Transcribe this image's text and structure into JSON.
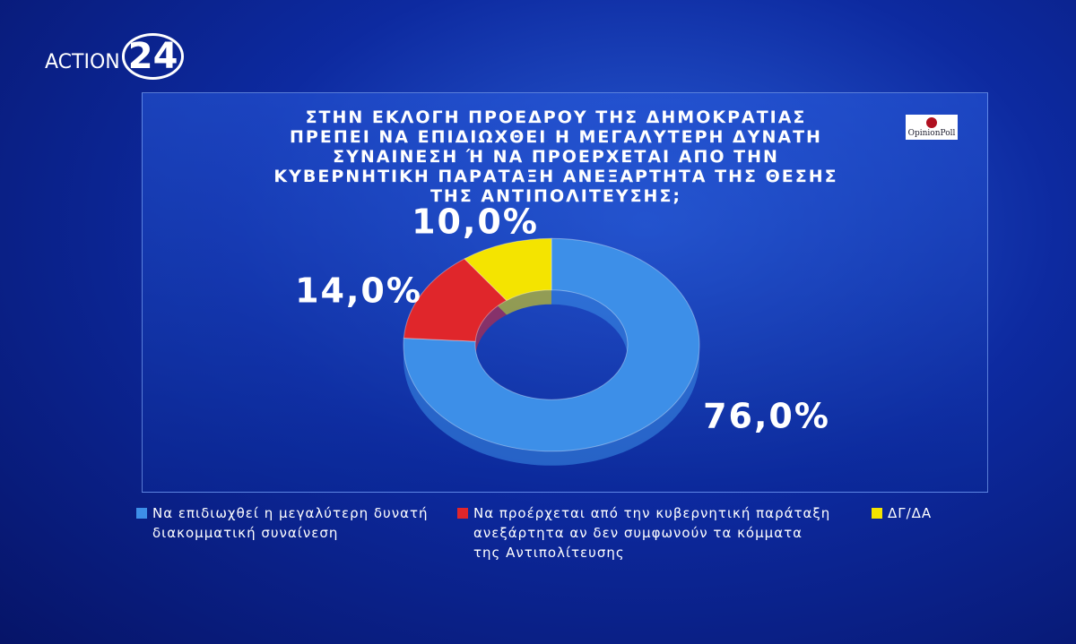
{
  "brand": {
    "channel": "ACTION",
    "number": "24",
    "pollster": "OpinionPoll"
  },
  "chart_data": {
    "type": "donut",
    "title": "ΣΤΗΝ ΕΚΛΟΓΗ ΠΡΟΕΔΡΟΥ ΤΗΣ ΔΗΜΟΚΡΑΤΙΑΣ ΠΡΕΠΕΙ ΝΑ ΕΠΙΔΙΩΧΘΕΙ Η ΜΕΓΑΛΥΤΕΡΗ ΔΥΝΑΤΗ ΣΥΝΑΙΝΕΣΗ Ή ΝΑ ΠΡΟΕΡΧΕΤΑΙ ΑΠΟ ΤΗΝ ΚΥΒΕΡΝΗΤΙΚΗ ΠΑΡΑΤΑΞΗ ΑΝΕΞΑΡΤΗΤΑ ΤΗΣ ΘΕΣΗΣ ΤΗΣ ΑΝΤΙΠΟΛΙΤΕΥΣΗΣ;",
    "categories": [
      "Να επιδιωχθεί η μεγαλύτερη δυνατή διακομματική συναίνεση",
      "Να προέρχεται από την κυβερνητική παράταξη ανεξάρτητα αν δεν συμφωνούν τα κόμματα της Αντιπολίτευσης",
      "ΔΓ/ΔΑ"
    ],
    "values": [
      76.0,
      14.0,
      10.0
    ],
    "value_labels": [
      "76,0%",
      "14,0%",
      "10,0%"
    ],
    "colors": [
      "#3d8fe8",
      "#e0262b",
      "#f4e400"
    ]
  }
}
